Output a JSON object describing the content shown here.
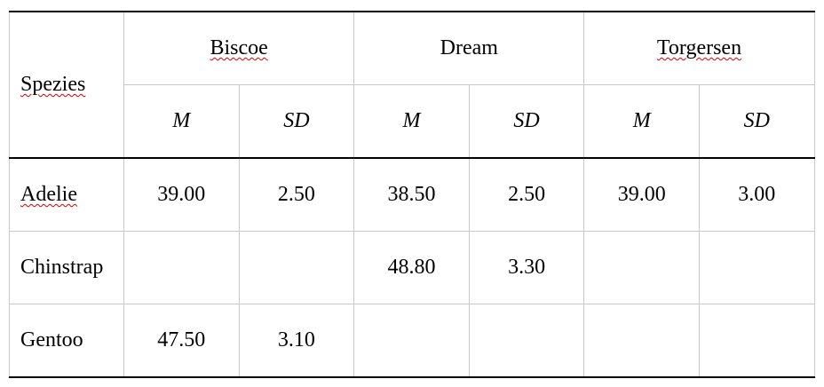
{
  "table": {
    "row_header": "Spezies",
    "groups": [
      "Biscoe",
      "Dream",
      "Torgersen"
    ],
    "sub_headers": [
      "M",
      "SD"
    ],
    "rows": [
      {
        "species": "Adelie",
        "values": [
          "39.00",
          "2.50",
          "38.50",
          "2.50",
          "39.00",
          "3.00"
        ]
      },
      {
        "species": "Chinstrap",
        "values": [
          "",
          "",
          "48.80",
          "3.30",
          "",
          ""
        ]
      },
      {
        "species": "Gentoo",
        "values": [
          "47.50",
          "3.10",
          "",
          "",
          "",
          ""
        ]
      }
    ]
  },
  "colors": {
    "border": "#c8c8c8",
    "rule": "#000000",
    "spellcheck": "#d40000"
  }
}
